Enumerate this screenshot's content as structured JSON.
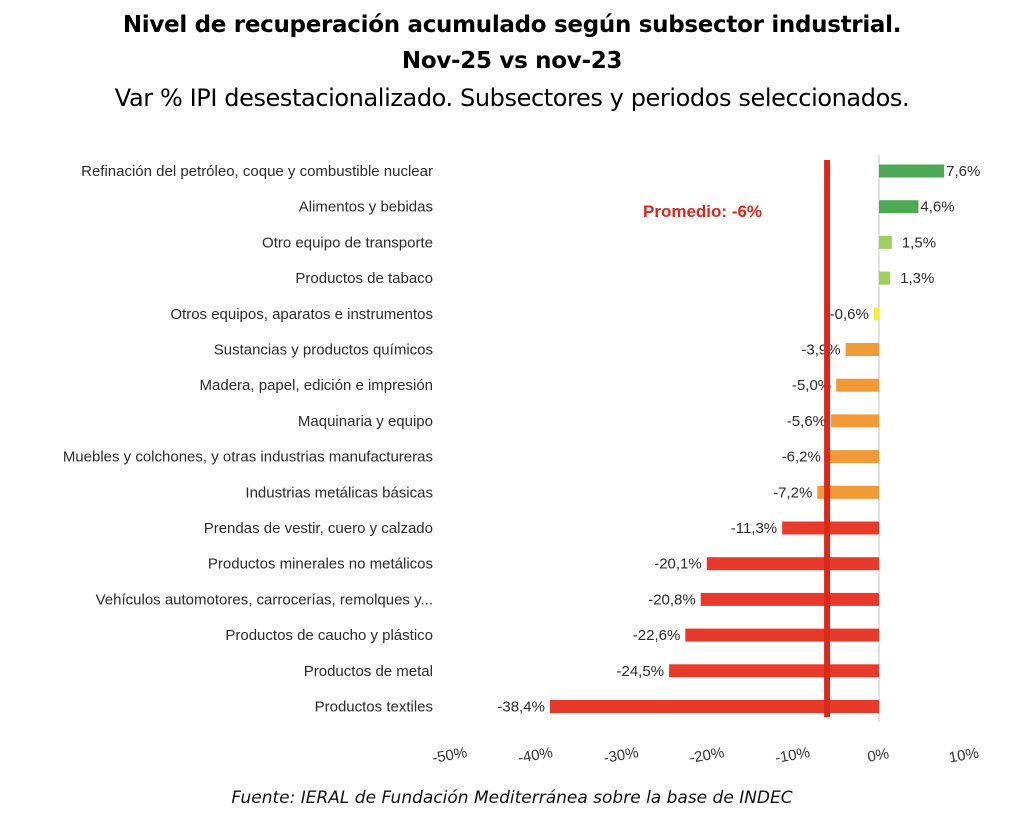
{
  "chart_data": {
    "type": "bar",
    "orientation": "horizontal",
    "title": "Nivel de recuperación acumulado según subsector industrial.",
    "title_line2": "Nov-25 vs nov-23",
    "subtitle": "Var % IPI desestacionalizado. Subsectores y periodos seleccionados.",
    "source": "Fuente: IERAL de Fundación Mediterránea sobre la base de INDEC",
    "xlabel": "",
    "ylabel": "",
    "xlim": [
      -50,
      10
    ],
    "x_ticks": [
      -50,
      -40,
      -30,
      -20,
      -10,
      0,
      10
    ],
    "x_tick_labels": [
      "-50%",
      "-40%",
      "-30%",
      "-20%",
      "-10%",
      "0%",
      "10%"
    ],
    "grid": false,
    "categories": [
      "Refinación del petróleo, coque y combustible nuclear",
      "Alimentos y bebidas",
      "Otro equipo de transporte",
      "Productos de tabaco",
      "Otros equipos, aparatos e instrumentos",
      "Sustancias y productos químicos",
      "Madera, papel, edición e impresión",
      "Maquinaria y equipo",
      "Muebles y colchones, y otras industrias manufactureras",
      "Industrias metálicas básicas",
      "Prendas de vestir, cuero y calzado",
      "Productos minerales no metálicos",
      "Vehículos automotores, carrocerías, remolques y...",
      "Productos de caucho y plástico",
      "Productos de metal",
      "Productos textiles"
    ],
    "values": [
      7.6,
      4.6,
      1.5,
      1.3,
      -0.6,
      -3.9,
      -5.0,
      -5.6,
      -6.2,
      -7.2,
      -11.3,
      -20.1,
      -20.8,
      -22.6,
      -24.5,
      -38.4
    ],
    "value_labels": [
      "7,6%",
      "4,6%",
      "1,5%",
      "1,3%",
      "-0,6%",
      "-3,9%",
      "-5,0%",
      "-5,6%",
      "-6,2%",
      "-7,2%",
      "-11,3%",
      "-20,1%",
      "-20,8%",
      "-22,6%",
      "-24,5%",
      "-38,4%"
    ],
    "bar_colors": [
      "#4ea957",
      "#4ea957",
      "#9fcf5f",
      "#9fcf5f",
      "#f7ef3a",
      "#f19a38",
      "#f19a38",
      "#f19a38",
      "#f19a38",
      "#f19a38",
      "#e83a2a",
      "#e83a2a",
      "#e83a2a",
      "#e83a2a",
      "#e83a2a",
      "#e83a2a"
    ],
    "reference_line": {
      "value": -6,
      "label": "Promedio: -6%",
      "color": "#d9291c"
    }
  }
}
